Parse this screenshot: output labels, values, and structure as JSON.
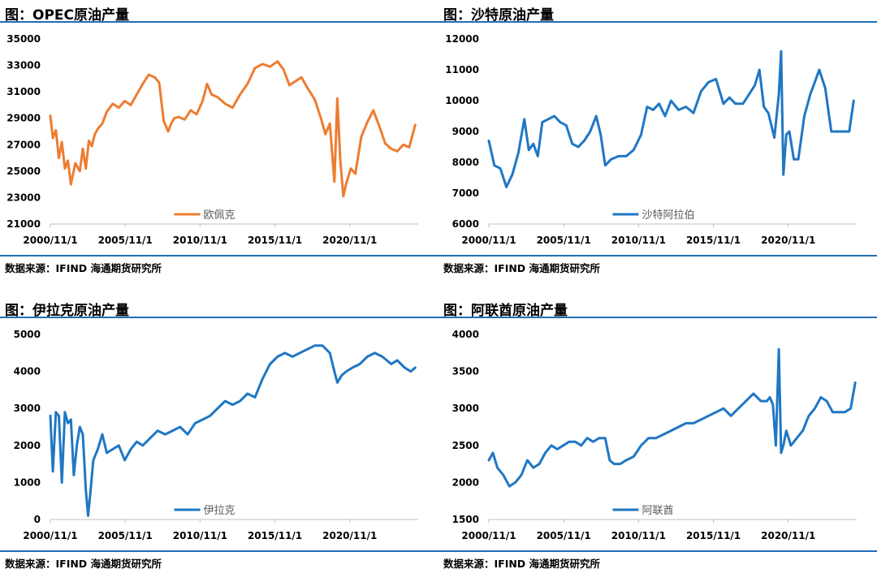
{
  "source_label": "数据来源：IFIND   海通期货研究所",
  "chart_data": [
    {
      "type": "line",
      "title": "图：OPEC原油产量",
      "xlim": [
        2000.83,
        2025.4
      ],
      "ylim": [
        21000,
        35000
      ],
      "y_ticks": [
        21000,
        23000,
        25000,
        27000,
        29000,
        31000,
        33000,
        35000
      ],
      "x_ticks": [
        2000.83,
        2005.83,
        2010.83,
        2015.83,
        2020.83
      ],
      "x_tick_labels": [
        "2000/11/1",
        "2005/11/1",
        "2010/11/1",
        "2015/11/1",
        "2020/11/1"
      ],
      "grid": false,
      "legend_position": "bottom-center",
      "series": [
        {
          "name": "欧佩克",
          "color": "#ed7d31",
          "x": [
            2000.83,
            2001.0,
            2001.2,
            2001.4,
            2001.6,
            2001.8,
            2002.0,
            2002.2,
            2002.5,
            2002.8,
            2003.0,
            2003.2,
            2003.4,
            2003.6,
            2003.8,
            2004.0,
            2004.3,
            2004.6,
            2005.0,
            2005.4,
            2005.8,
            2006.2,
            2006.6,
            2007.0,
            2007.4,
            2007.8,
            2008.1,
            2008.4,
            2008.7,
            2008.9,
            2009.1,
            2009.4,
            2009.8,
            2010.2,
            2010.6,
            2011.0,
            2011.3,
            2011.6,
            2012.0,
            2012.5,
            2013.0,
            2013.5,
            2014.0,
            2014.5,
            2015.0,
            2015.5,
            2016.0,
            2016.4,
            2016.8,
            2017.2,
            2017.6,
            2018.0,
            2018.5,
            2018.9,
            2019.2,
            2019.5,
            2019.8,
            2020.0,
            2020.2,
            2020.4,
            2020.6,
            2020.9,
            2021.2,
            2021.6,
            2022.0,
            2022.4,
            2022.8,
            2023.2,
            2023.6,
            2024.0,
            2024.4,
            2024.8,
            2025.2
          ],
          "y": [
            29200,
            27500,
            28100,
            26000,
            27200,
            25200,
            25800,
            24000,
            25600,
            25000,
            26700,
            25200,
            27300,
            26900,
            27800,
            28200,
            28600,
            29500,
            30100,
            29800,
            30300,
            30000,
            30800,
            31600,
            32300,
            32100,
            31700,
            28800,
            28000,
            28600,
            29000,
            29100,
            28900,
            29600,
            29300,
            30300,
            31600,
            30800,
            30600,
            30100,
            29800,
            30800,
            31600,
            32800,
            33100,
            32900,
            33300,
            32700,
            31500,
            31800,
            32100,
            31300,
            30400,
            29000,
            27800,
            28600,
            24200,
            30500,
            25800,
            23100,
            24100,
            25200,
            24800,
            27600,
            28700,
            29600,
            28400,
            27100,
            26700,
            26500,
            27000,
            26800,
            28500
          ]
        }
      ]
    },
    {
      "type": "line",
      "title": "图：沙特原油产量",
      "xlim": [
        2000.83,
        2025.4
      ],
      "ylim": [
        6000,
        12000
      ],
      "y_ticks": [
        6000,
        7000,
        8000,
        9000,
        10000,
        11000,
        12000
      ],
      "x_ticks": [
        2000.83,
        2005.83,
        2010.83,
        2015.83,
        2020.83
      ],
      "x_tick_labels": [
        "2000/11/1",
        "2005/11/1",
        "2010/11/1",
        "2015/11/1",
        "2020/11/1"
      ],
      "grid": false,
      "legend_position": "bottom-center",
      "series": [
        {
          "name": "沙特阿拉伯",
          "color": "#1f77c4",
          "x": [
            2000.83,
            2001.2,
            2001.6,
            2002.0,
            2002.4,
            2002.8,
            2003.2,
            2003.5,
            2003.8,
            2004.1,
            2004.4,
            2004.8,
            2005.2,
            2005.6,
            2006.0,
            2006.4,
            2006.8,
            2007.2,
            2007.6,
            2008.0,
            2008.3,
            2008.6,
            2009.0,
            2009.5,
            2010.0,
            2010.5,
            2011.0,
            2011.4,
            2011.8,
            2012.2,
            2012.6,
            2013.0,
            2013.5,
            2014.0,
            2014.5,
            2015.0,
            2015.5,
            2016.0,
            2016.5,
            2016.9,
            2017.3,
            2017.8,
            2018.2,
            2018.6,
            2018.9,
            2019.2,
            2019.5,
            2019.9,
            2020.2,
            2020.35,
            2020.5,
            2020.7,
            2020.9,
            2021.2,
            2021.5,
            2021.9,
            2022.3,
            2022.6,
            2022.9,
            2023.3,
            2023.7,
            2024.1,
            2024.5,
            2024.9,
            2025.2
          ],
          "y": [
            8700,
            7900,
            7800,
            7200,
            7600,
            8300,
            9400,
            8400,
            8600,
            8200,
            9300,
            9400,
            9500,
            9300,
            9200,
            8600,
            8500,
            8700,
            9000,
            9500,
            8900,
            7900,
            8100,
            8200,
            8200,
            8400,
            8900,
            9800,
            9700,
            9900,
            9500,
            10000,
            9700,
            9800,
            9600,
            10300,
            10600,
            10700,
            9900,
            10100,
            9900,
            9900,
            10200,
            10500,
            11000,
            9800,
            9600,
            8800,
            10200,
            11600,
            7600,
            8900,
            9000,
            8100,
            8100,
            9500,
            10200,
            10600,
            11000,
            10400,
            9000,
            9000,
            9000,
            9000,
            10000
          ]
        }
      ]
    },
    {
      "type": "line",
      "title": "图：伊拉克原油产量",
      "xlim": [
        2000.83,
        2025.4
      ],
      "ylim": [
        0,
        5000
      ],
      "y_ticks": [
        0,
        1000,
        2000,
        3000,
        4000,
        5000
      ],
      "x_ticks": [
        2000.83,
        2005.83,
        2010.83,
        2015.83,
        2020.83
      ],
      "x_tick_labels": [
        "2000/11/1",
        "2005/11/1",
        "2010/11/1",
        "2015/11/1",
        "2020/11/1"
      ],
      "grid": false,
      "legend_position": "bottom-center",
      "series": [
        {
          "name": "伊拉克",
          "color": "#1f77c4",
          "x": [
            2000.83,
            2001.0,
            2001.2,
            2001.4,
            2001.6,
            2001.8,
            2002.0,
            2002.2,
            2002.4,
            2002.6,
            2002.8,
            2003.0,
            2003.2,
            2003.35,
            2003.5,
            2003.7,
            2004.0,
            2004.3,
            2004.6,
            2005.0,
            2005.4,
            2005.8,
            2006.2,
            2006.6,
            2007.0,
            2007.5,
            2008.0,
            2008.5,
            2009.0,
            2009.5,
            2010.0,
            2010.5,
            2011.0,
            2011.5,
            2012.0,
            2012.5,
            2013.0,
            2013.5,
            2014.0,
            2014.5,
            2015.0,
            2015.5,
            2016.0,
            2016.5,
            2017.0,
            2017.5,
            2018.0,
            2018.5,
            2019.0,
            2019.5,
            2019.8,
            2020.0,
            2020.3,
            2020.6,
            2021.0,
            2021.5,
            2022.0,
            2022.5,
            2023.0,
            2023.3,
            2023.6,
            2024.0,
            2024.5,
            2024.9,
            2025.2
          ],
          "y": [
            2800,
            1300,
            2900,
            2800,
            1000,
            2900,
            2600,
            2700,
            1200,
            2000,
            2500,
            2300,
            800,
            100,
            700,
            1600,
            1900,
            2300,
            1800,
            1900,
            2000,
            1600,
            1900,
            2100,
            2000,
            2200,
            2400,
            2300,
            2400,
            2500,
            2300,
            2600,
            2700,
            2800,
            3000,
            3200,
            3100,
            3200,
            3400,
            3300,
            3800,
            4200,
            4400,
            4500,
            4400,
            4500,
            4600,
            4700,
            4700,
            4500,
            4000,
            3700,
            3900,
            4000,
            4100,
            4200,
            4400,
            4500,
            4400,
            4300,
            4200,
            4300,
            4100,
            4000,
            4100
          ]
        }
      ]
    },
    {
      "type": "line",
      "title": "图：阿联酋原油产量",
      "xlim": [
        2000.83,
        2025.4
      ],
      "ylim": [
        1500,
        4000
      ],
      "y_ticks": [
        1500,
        2000,
        2500,
        3000,
        3500,
        4000
      ],
      "x_ticks": [
        2000.83,
        2005.83,
        2010.83,
        2015.83,
        2020.83
      ],
      "x_tick_labels": [
        "2000/11/1",
        "2005/11/1",
        "2010/11/1",
        "2015/11/1",
        "2020/11/1"
      ],
      "grid": false,
      "legend_position": "bottom-center",
      "series": [
        {
          "name": "阿联酋",
          "color": "#1f77c4",
          "x": [
            2000.83,
            2001.1,
            2001.4,
            2001.8,
            2002.2,
            2002.6,
            2003.0,
            2003.4,
            2003.8,
            2004.2,
            2004.6,
            2005.0,
            2005.4,
            2005.8,
            2006.2,
            2006.6,
            2007.0,
            2007.4,
            2007.8,
            2008.2,
            2008.6,
            2008.9,
            2009.2,
            2009.6,
            2010.0,
            2010.5,
            2011.0,
            2011.5,
            2012.0,
            2012.5,
            2013.0,
            2013.5,
            2014.0,
            2014.5,
            2015.0,
            2015.5,
            2016.0,
            2016.5,
            2017.0,
            2017.5,
            2018.0,
            2018.5,
            2019.0,
            2019.4,
            2019.6,
            2019.8,
            2020.0,
            2020.2,
            2020.35,
            2020.5,
            2020.7,
            2021.0,
            2021.4,
            2021.8,
            2022.2,
            2022.6,
            2023.0,
            2023.4,
            2023.8,
            2024.2,
            2024.6,
            2025.0,
            2025.3
          ],
          "y": [
            2300,
            2400,
            2200,
            2100,
            1950,
            2000,
            2100,
            2300,
            2200,
            2250,
            2400,
            2500,
            2450,
            2500,
            2550,
            2550,
            2500,
            2600,
            2550,
            2600,
            2600,
            2300,
            2250,
            2250,
            2300,
            2350,
            2500,
            2600,
            2600,
            2650,
            2700,
            2750,
            2800,
            2800,
            2850,
            2900,
            2950,
            3000,
            2900,
            3000,
            3100,
            3200,
            3100,
            3100,
            3150,
            3050,
            2500,
            3800,
            2400,
            2500,
            2700,
            2500,
            2600,
            2700,
            2900,
            3000,
            3150,
            3100,
            2950,
            2950,
            2950,
            3000,
            3350
          ]
        }
      ]
    }
  ]
}
